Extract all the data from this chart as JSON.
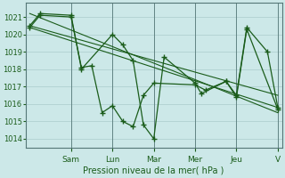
{
  "background_color": "#cce8e8",
  "grid_color": "#aacccc",
  "line_color": "#1a5c1a",
  "xlabel": "Pression niveau de la mer( hPa )",
  "xlabel_color": "#1a5c1a",
  "tick_color": "#1a5c1a",
  "ylim": [
    1013.5,
    1021.8
  ],
  "yticks": [
    1014,
    1015,
    1016,
    1017,
    1018,
    1019,
    1020,
    1021
  ],
  "xlim": [
    -0.2,
    12.2
  ],
  "day_labels": [
    "Sam",
    "Lun",
    "Mar",
    "Mer",
    "Jeu",
    "V"
  ],
  "day_positions": [
    2.0,
    4.0,
    6.0,
    8.0,
    10.0,
    12.0
  ],
  "series1_x": [
    0.0,
    0.5,
    2.0,
    2.5,
    4.0,
    4.5,
    5.0,
    5.5,
    6.0,
    6.5,
    8.0,
    8.3,
    9.5,
    10.0,
    10.5,
    11.5,
    12.0
  ],
  "series1_y": [
    1020.5,
    1021.2,
    1021.1,
    1018.0,
    1020.0,
    1019.4,
    1018.5,
    1014.8,
    1014.0,
    1018.7,
    1017.2,
    1016.6,
    1017.3,
    1016.5,
    1020.4,
    1019.0,
    1015.8
  ],
  "series2_x": [
    0.0,
    0.5,
    2.0,
    2.5,
    3.0,
    3.5,
    4.0,
    4.5,
    5.0,
    5.5,
    6.0,
    8.0,
    8.5,
    9.5,
    10.0,
    10.5,
    12.0
  ],
  "series2_y": [
    1020.4,
    1021.1,
    1021.0,
    1018.1,
    1018.2,
    1015.5,
    1015.9,
    1015.0,
    1014.7,
    1016.5,
    1017.2,
    1017.1,
    1016.8,
    1017.3,
    1016.4,
    1020.3,
    1015.7
  ],
  "trend1_x": [
    0.0,
    12.0
  ],
  "trend1_y": [
    1021.2,
    1015.5
  ],
  "trend2_x": [
    0.0,
    12.0
  ],
  "trend2_y": [
    1020.5,
    1016.5
  ],
  "trend3_x": [
    0.0,
    12.0
  ],
  "trend3_y": [
    1020.4,
    1015.8
  ]
}
